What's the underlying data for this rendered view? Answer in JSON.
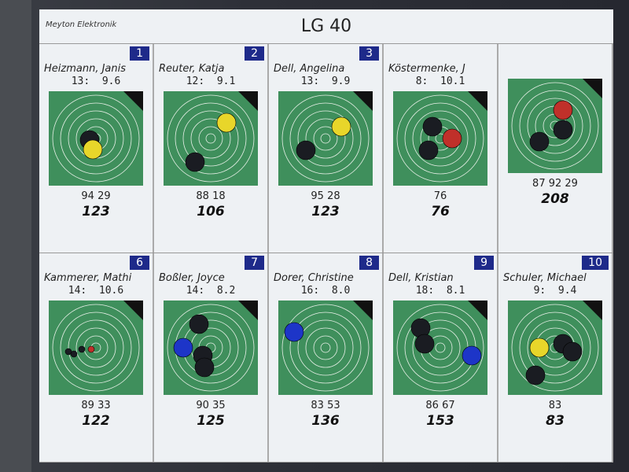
{
  "header": {
    "brand": "Meyton Elektronik",
    "title": "LG 40"
  },
  "colors": {
    "target": "#3f8f5c",
    "badge": "#1e2a8a",
    "shot_latest_yellow": "#e8d62a",
    "shot_red": "#c0302a",
    "shot_blue": "#1d35c8",
    "shot_old": "#1a1c22"
  },
  "cards": [
    {
      "number": "1",
      "name": "Heizmann, Janis",
      "shot_no": "13:",
      "shot_value": "9.6",
      "series": "94 29",
      "total": "123",
      "last_color": "yellow"
    },
    {
      "number": "2",
      "name": "Reuter, Katja",
      "shot_no": "12:",
      "shot_value": "9.1",
      "series": "88 18",
      "total": "106",
      "last_color": "yellow"
    },
    {
      "number": "3",
      "name": "Dell, Angelina",
      "shot_no": "13:",
      "shot_value": "9.9",
      "series": "95 28",
      "total": "123",
      "last_color": "yellow"
    },
    {
      "number": "",
      "name": "Köstermenke, J",
      "shot_no": "8:",
      "shot_value": "10.1",
      "series": "76",
      "total": "76",
      "last_color": "red"
    },
    {
      "number": "",
      "name": "",
      "shot_no": "",
      "shot_value": "",
      "series": "87 92 29",
      "total": "208",
      "last_color": "red"
    },
    {
      "number": "6",
      "name": "Kammerer, Mathi",
      "shot_no": "14:",
      "shot_value": "10.6",
      "series": "89 33",
      "total": "122",
      "last_color": "red"
    },
    {
      "number": "7",
      "name": "Boßler, Joyce",
      "shot_no": "14:",
      "shot_value": "8.2",
      "series": "90 35",
      "total": "125",
      "last_color": "blue"
    },
    {
      "number": "8",
      "name": "Dorer, Christine",
      "shot_no": "16:",
      "shot_value": "8.0",
      "series": "83 53",
      "total": "136",
      "last_color": "blue"
    },
    {
      "number": "9",
      "name": "Dell, Kristian",
      "shot_no": "18:",
      "shot_value": "8.1",
      "series": "86 67",
      "total": "153",
      "last_color": "blue"
    },
    {
      "number": "10",
      "name": "Schuler, Michael",
      "shot_no": "9:",
      "shot_value": "9.4",
      "series": "83",
      "total": "83",
      "last_color": "yellow"
    }
  ]
}
